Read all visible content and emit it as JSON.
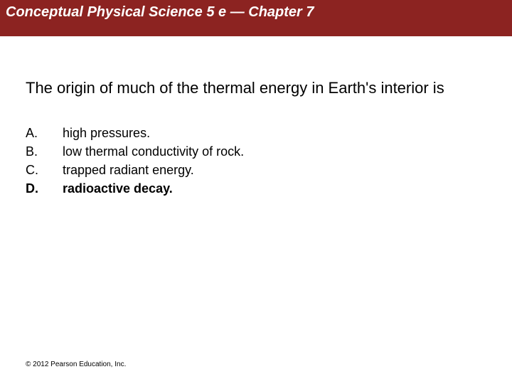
{
  "header": {
    "title": "Conceptual Physical Science 5 e — Chapter 7",
    "background_color": "#8c2321",
    "text_color": "#ffffff"
  },
  "question": {
    "text": "The origin of much of the thermal energy in Earth's interior is",
    "text_color": "#000000"
  },
  "options": [
    {
      "letter": "A.",
      "text": "high pressures.",
      "letter_weight": "normal",
      "text_weight": "normal"
    },
    {
      "letter": "B.",
      "text": "low thermal conductivity of rock.",
      "letter_weight": "normal",
      "text_weight": "normal"
    },
    {
      "letter": "C.",
      "text": "trapped radiant energy.",
      "letter_weight": "normal",
      "text_weight": "normal"
    },
    {
      "letter": "D.",
      "text": "radioactive decay.",
      "letter_weight": "bold",
      "text_weight": "bold"
    }
  ],
  "copyright": {
    "text": "© 2012 Pearson Education, Inc.",
    "text_color": "#000000"
  },
  "background_color": "#ffffff"
}
